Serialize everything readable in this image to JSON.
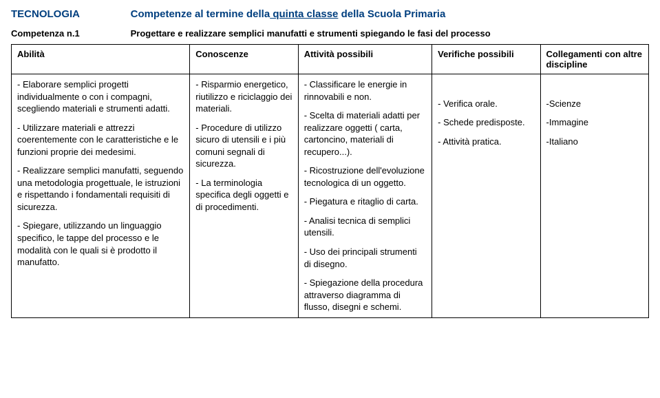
{
  "header": {
    "subject": "TECNOLOGIA",
    "title_prefix": "Competenze al termine della",
    "title_underlined": " quinta classe",
    "title_suffix": " della Scuola Primaria"
  },
  "competence": {
    "label": "Competenza n.1",
    "description": "Progettare e realizzare semplici manufatti e strumenti spiegando le fasi del processo"
  },
  "columns": {
    "c1": "Abilità",
    "c2": "Conoscenze",
    "c3": "Attività possibili",
    "c4": "Verifiche possibili",
    "c5": "Collegamenti con altre discipline"
  },
  "cells": {
    "abilita": {
      "p1": "- Elaborare semplici progetti individualmente o con i compagni, scegliendo materiali e strumenti adatti.",
      "p2": "- Utilizzare materiali e attrezzi coerentemente con le caratteristiche e le funzioni proprie dei medesimi.",
      "p3": "- Realizzare semplici manufatti, seguendo una metodologia progettuale, le istruzioni e rispettando i fondamentali requisiti di sicurezza.",
      "p4": "- Spiegare, utilizzando un linguaggio specifico, le tappe del processo e le modalità con le quali si è prodotto il manufatto."
    },
    "conoscenze": {
      "p1": "- Risparmio energetico, riutilizzo e riciclaggio dei materiali.",
      "p2": "- Procedure di utilizzo sicuro di utensili e i più comuni segnali di sicurezza.",
      "p3": "- La terminologia specifica degli oggetti e di procedimenti."
    },
    "attivita": {
      "p1": "- Classificare le energie in rinnovabili e non.",
      "p2": "- Scelta di materiali adatti per realizzare oggetti ( carta, cartoncino, materiali di recupero...).",
      "p3": "- Ricostruzione dell'evoluzione tecnologica di un oggetto.",
      "p4": "- Piegatura e ritaglio di carta.",
      "p5": "- Analisi tecnica di semplici utensili.",
      "p6": "- Uso dei principali strumenti di disegno.",
      "p7": "- Spiegazione della procedura attraverso diagramma di flusso, disegni e schemi."
    },
    "verifiche": {
      "p1": "- Verifica orale.",
      "p2": "- Schede predisposte.",
      "p3": "- Attività pratica."
    },
    "collegamenti": {
      "p1": "-Scienze",
      "p2": "-Immagine",
      "p3": "-Italiano"
    }
  }
}
